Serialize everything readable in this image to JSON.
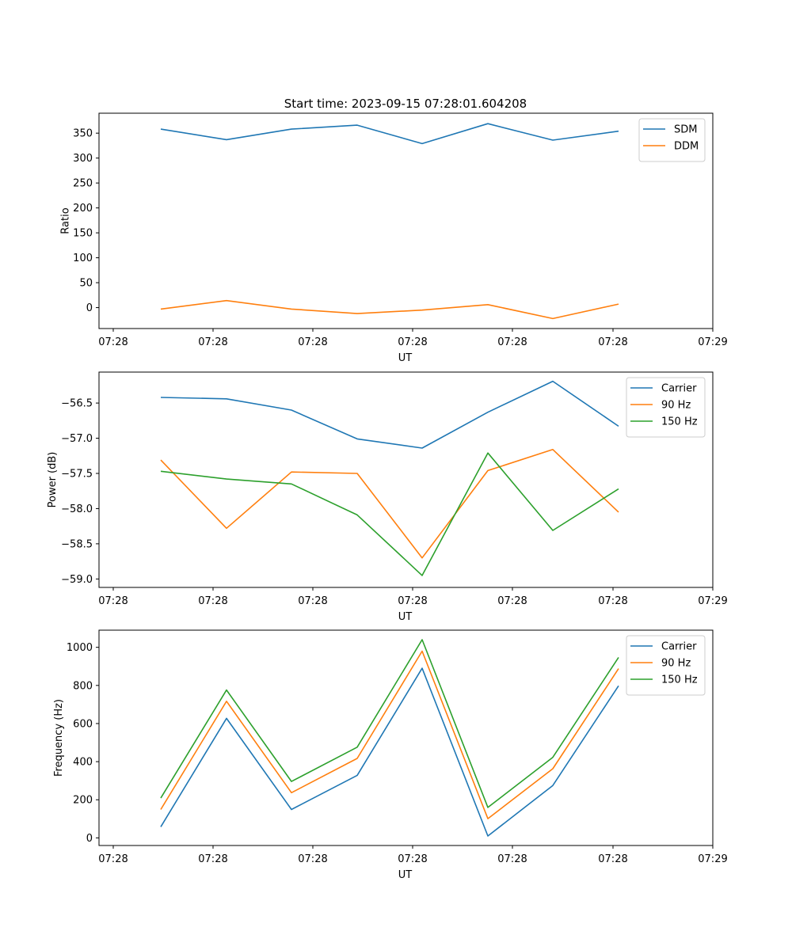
{
  "figure": {
    "title": "Start time: 2023-09-15 07:28:01.604208"
  },
  "colors": {
    "blue": "#1f77b4",
    "orange": "#ff7f0e",
    "green": "#2ca02c",
    "axis": "#000000",
    "legend_border": "#cccccc"
  },
  "chart_data": [
    {
      "type": "line",
      "title": "Start time: 2023-09-15 07:28:01.604208",
      "xlabel": "UT",
      "ylabel": "Ratio",
      "x_tick_labels": [
        "07:28",
        "07:28",
        "07:28",
        "07:28",
        "07:28",
        "07:28",
        "07:29"
      ],
      "y_ticks": [
        0,
        50,
        100,
        150,
        200,
        250,
        300,
        350
      ],
      "y_tick_labels": [
        "0",
        "50",
        "100",
        "150",
        "200",
        "250",
        "300",
        "350"
      ],
      "ylim": [
        -42,
        390
      ],
      "legend_position": "top-right",
      "grid": false,
      "series": [
        {
          "name": "SDM",
          "color": "#1f77b4",
          "values": [
            358,
            337,
            358,
            366,
            329,
            369,
            336,
            354
          ]
        },
        {
          "name": "DDM",
          "color": "#ff7f0e",
          "values": [
            -3,
            14,
            -3,
            -12,
            -5,
            6,
            -22,
            7
          ]
        }
      ]
    },
    {
      "type": "line",
      "title": "",
      "xlabel": "UT",
      "ylabel": "Power (dB)",
      "x_tick_labels": [
        "07:28",
        "07:28",
        "07:28",
        "07:28",
        "07:28",
        "07:28",
        "07:29"
      ],
      "y_ticks": [
        -59.0,
        -58.5,
        -58.0,
        -57.5,
        -57.0,
        -56.5
      ],
      "y_tick_labels": [
        "−59.0",
        "−58.5",
        "−58.0",
        "−57.5",
        "−57.0",
        "−56.5"
      ],
      "ylim": [
        -59.12,
        -56.06
      ],
      "legend_position": "top-right",
      "grid": false,
      "series": [
        {
          "name": "Carrier",
          "color": "#1f77b4",
          "values": [
            -56.42,
            -56.44,
            -56.6,
            -57.01,
            -57.14,
            -56.63,
            -56.19,
            -56.83
          ]
        },
        {
          "name": "90 Hz",
          "color": "#ff7f0e",
          "values": [
            -57.31,
            -58.28,
            -57.48,
            -57.5,
            -58.7,
            -57.46,
            -57.16,
            -58.05
          ]
        },
        {
          "name": "150 Hz",
          "color": "#2ca02c",
          "values": [
            -57.47,
            -57.58,
            -57.65,
            -58.09,
            -58.95,
            -57.21,
            -58.31,
            -57.72
          ]
        }
      ]
    },
    {
      "type": "line",
      "title": "",
      "xlabel": "UT",
      "ylabel": "Frequency (Hz)",
      "x_tick_labels": [
        "07:28",
        "07:28",
        "07:28",
        "07:28",
        "07:28",
        "07:28",
        "07:29"
      ],
      "y_ticks": [
        0,
        200,
        400,
        600,
        800,
        1000
      ],
      "y_tick_labels": [
        "0",
        "200",
        "400",
        "600",
        "800",
        "1000"
      ],
      "ylim": [
        -40,
        1090
      ],
      "legend_position": "top-right",
      "grid": false,
      "series": [
        {
          "name": "Carrier",
          "color": "#1f77b4",
          "values": [
            58,
            627,
            149,
            328,
            890,
            10,
            275,
            798
          ]
        },
        {
          "name": "90 Hz",
          "color": "#ff7f0e",
          "values": [
            149,
            717,
            237,
            417,
            980,
            101,
            363,
            888
          ]
        },
        {
          "name": "150 Hz",
          "color": "#2ca02c",
          "values": [
            209,
            776,
            296,
            476,
            1040,
            160,
            423,
            947
          ]
        }
      ]
    }
  ]
}
